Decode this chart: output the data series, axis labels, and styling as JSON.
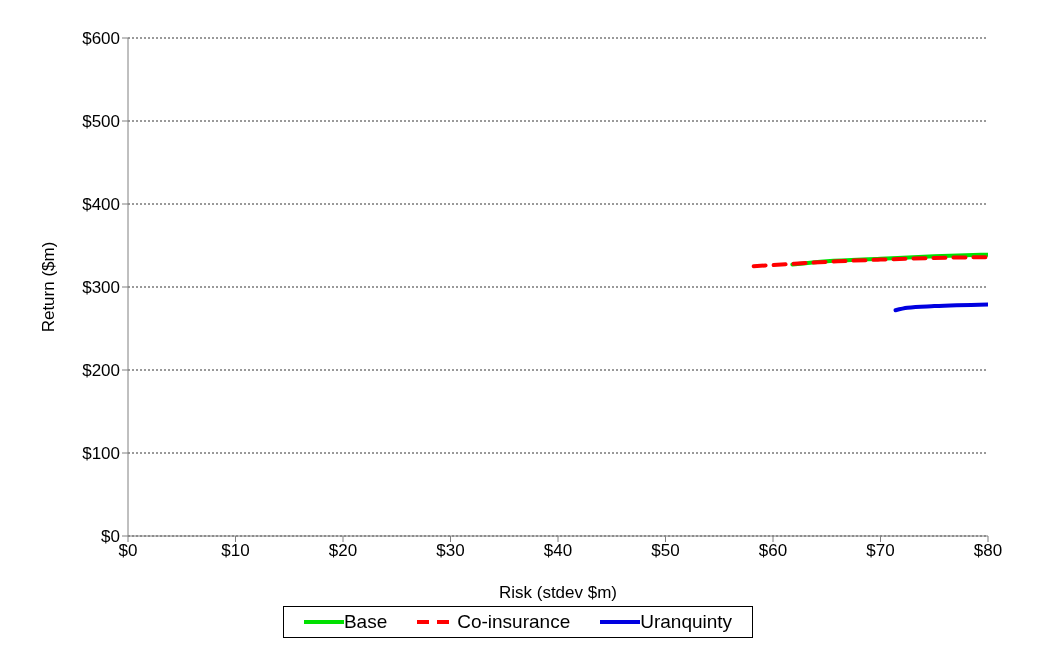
{
  "chart_data": {
    "type": "line",
    "xlabel": "Risk (stdev $m)",
    "ylabel": "Return ($m)",
    "xlim": [
      0,
      80
    ],
    "xticks": [
      {
        "value": 0,
        "label": "$0"
      },
      {
        "value": 10,
        "label": "$10"
      },
      {
        "value": 20,
        "label": "$20"
      },
      {
        "value": 30,
        "label": "$30"
      },
      {
        "value": 40,
        "label": "$40"
      },
      {
        "value": 50,
        "label": "$50"
      },
      {
        "value": 60,
        "label": "$60"
      },
      {
        "value": 70,
        "label": "$70"
      },
      {
        "value": 80,
        "label": "$80"
      }
    ],
    "ylim": [
      0,
      600
    ],
    "yticks": [
      {
        "value": 0,
        "label": "$0"
      },
      {
        "value": 100,
        "label": "$100"
      },
      {
        "value": 200,
        "label": "$200"
      },
      {
        "value": 300,
        "label": "$300"
      },
      {
        "value": 400,
        "label": "$400"
      },
      {
        "value": 500,
        "label": "$500"
      },
      {
        "value": 600,
        "label": "$600"
      }
    ],
    "grid": "y",
    "legend": "bottom",
    "marker": "none",
    "series": [
      {
        "name": "Base",
        "color": "#00e000",
        "line_style": "solid",
        "x": [
          61.8,
          65,
          70,
          75,
          80
        ],
        "values": [
          327,
          331,
          334,
          337,
          339
        ]
      },
      {
        "name": "Co-insurance",
        "color": "#ff0000",
        "line_style": "dashed",
        "x": [
          58.2,
          62,
          66,
          70,
          75,
          80
        ],
        "values": [
          325,
          328,
          331,
          333,
          335,
          336
        ]
      },
      {
        "name": "Uranquinty",
        "color": "#0000e0",
        "line_style": "solid",
        "x": [
          71.4,
          72.5,
          75,
          80
        ],
        "values": [
          272,
          275,
          277,
          279
        ]
      }
    ]
  }
}
